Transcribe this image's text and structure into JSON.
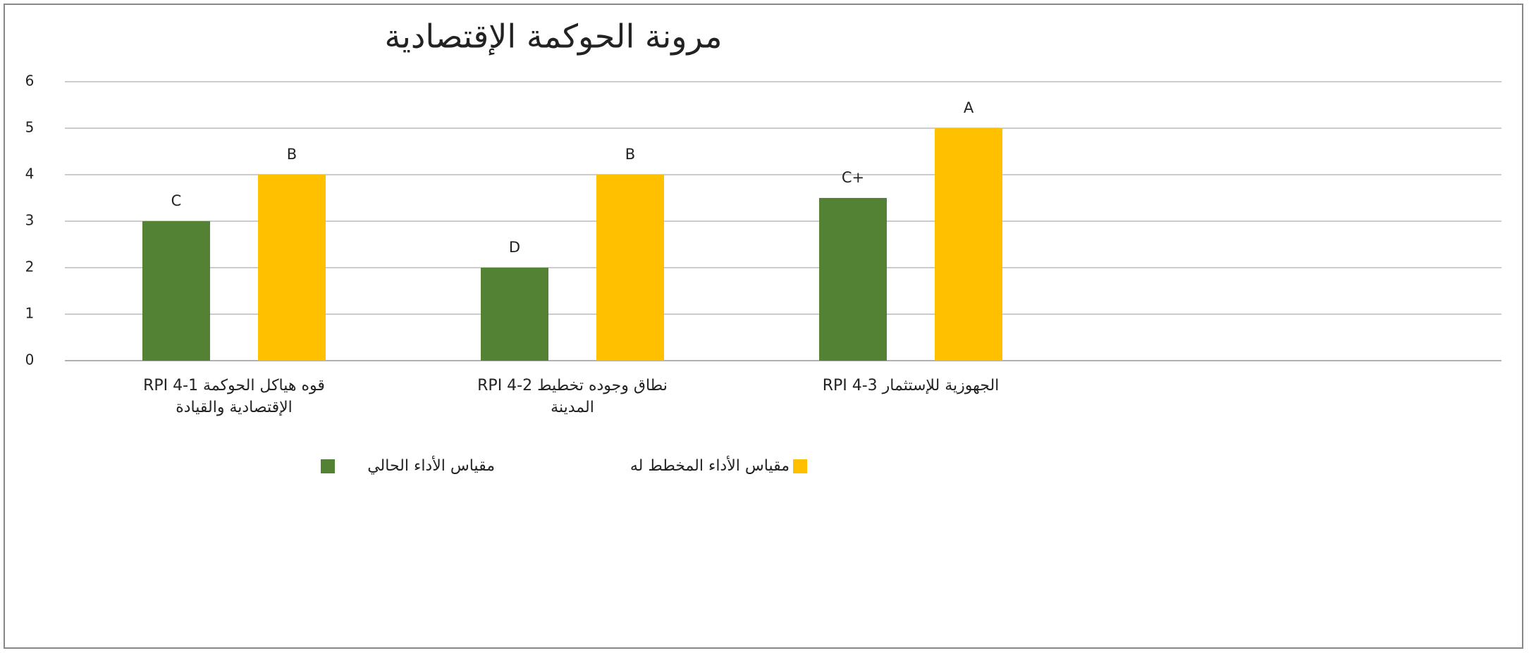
{
  "chart_data": {
    "type": "bar",
    "title": "مرونة الحوكمة الإقتصادية",
    "categories": [
      [
        "قوه هياكل الحوكمة RPI 4-1",
        "الإقتصادية والقيادة"
      ],
      [
        "نطاق وجوده تخطيط RPI 4-2",
        "المدينة"
      ],
      [
        "الجهوزية للإستثمار RPI 4-3"
      ]
    ],
    "series": [
      {
        "name": "مقياس الأداء الحالي",
        "color": "#548235",
        "values": [
          3,
          2,
          3.5
        ],
        "value_labels": [
          "C",
          "D",
          "C+"
        ]
      },
      {
        "name": "مقياس الأداء المخطط له",
        "color": "#ffc000",
        "values": [
          4,
          4,
          5
        ],
        "value_labels": [
          "B",
          "B",
          "A"
        ]
      }
    ],
    "ylim": [
      0,
      6
    ],
    "yticks": [
      0,
      1,
      2,
      3,
      4,
      5,
      6
    ],
    "grid": true,
    "legend": "bottom"
  }
}
